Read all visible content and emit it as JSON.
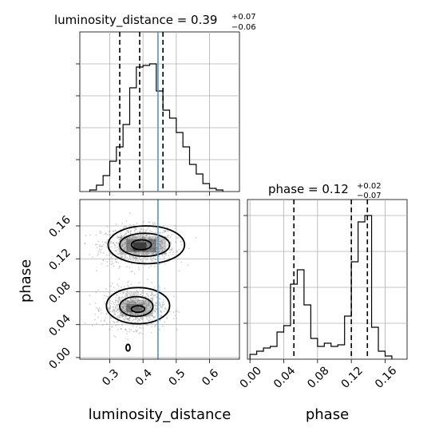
{
  "chart_data": [
    {
      "panel": "top-left",
      "type": "histogram",
      "title_prefix": "luminosity_distance = 0.39",
      "title_upper": "+0.07",
      "title_lower": "−0.06",
      "xlim": [
        0.21,
        0.69
      ],
      "ylim": [
        0,
        1.0
      ],
      "grid": true,
      "bin_edges": [
        0.24,
        0.26,
        0.28,
        0.3,
        0.32,
        0.34,
        0.36,
        0.38,
        0.4,
        0.42,
        0.44,
        0.46,
        0.48,
        0.5,
        0.52,
        0.54,
        0.56,
        0.58,
        0.6,
        0.62,
        0.64
      ],
      "counts": [
        0.01,
        0.04,
        0.1,
        0.19,
        0.28,
        0.42,
        0.65,
        0.78,
        0.79,
        0.8,
        0.63,
        0.51,
        0.46,
        0.37,
        0.28,
        0.17,
        0.11,
        0.05,
        0.02,
        0.01
      ],
      "quantiles": [
        0.33,
        0.39,
        0.46
      ],
      "truth": 0.445
    },
    {
      "panel": "bottom-left",
      "type": "scatter-contour",
      "xlabel": "luminosity_distance",
      "ylabel": "phase",
      "xlim": [
        0.21,
        0.69
      ],
      "ylim": [
        -0.002,
        0.192
      ],
      "xticks": [
        "0.3",
        "0.4",
        "0.5",
        "0.6"
      ],
      "yticks": [
        "0.00",
        "0.04",
        "0.08",
        "0.12",
        "0.16"
      ],
      "xtick_values": [
        0.3,
        0.4,
        0.5,
        0.6
      ],
      "ytick_values": [
        0.0,
        0.04,
        0.08,
        0.12,
        0.16
      ],
      "grid": true,
      "truth_x": 0.445,
      "modes": [
        {
          "x": 0.385,
          "y": 0.136,
          "sx": 0.055,
          "sy": 0.012
        },
        {
          "x": 0.375,
          "y": 0.06,
          "sx": 0.045,
          "sy": 0.012
        }
      ]
    },
    {
      "panel": "bottom-right",
      "type": "histogram",
      "title_prefix": "phase = 0.12",
      "title_upper": "+0.02",
      "title_lower": "−0.07",
      "xlabel": "phase",
      "xlim": [
        -0.003,
        0.186
      ],
      "ylim": [
        0,
        1.0
      ],
      "xticks": [
        "0.00",
        "0.04",
        "0.08",
        "0.12",
        "0.16"
      ],
      "xtick_values": [
        0.0,
        0.04,
        0.08,
        0.12,
        0.16
      ],
      "grid": true,
      "bin_edges": [
        0.0,
        0.008,
        0.016,
        0.024,
        0.032,
        0.04,
        0.048,
        0.056,
        0.064,
        0.072,
        0.08,
        0.088,
        0.096,
        0.104,
        0.112,
        0.12,
        0.128,
        0.136,
        0.144,
        0.152,
        0.16,
        0.168
      ],
      "counts": [
        0.03,
        0.05,
        0.07,
        0.08,
        0.17,
        0.21,
        0.47,
        0.56,
        0.34,
        0.13,
        0.08,
        0.1,
        0.08,
        0.09,
        0.27,
        0.61,
        0.86,
        0.9,
        0.2,
        0.05,
        0.02
      ],
      "quantiles": [
        0.052,
        0.12,
        0.139
      ]
    }
  ]
}
